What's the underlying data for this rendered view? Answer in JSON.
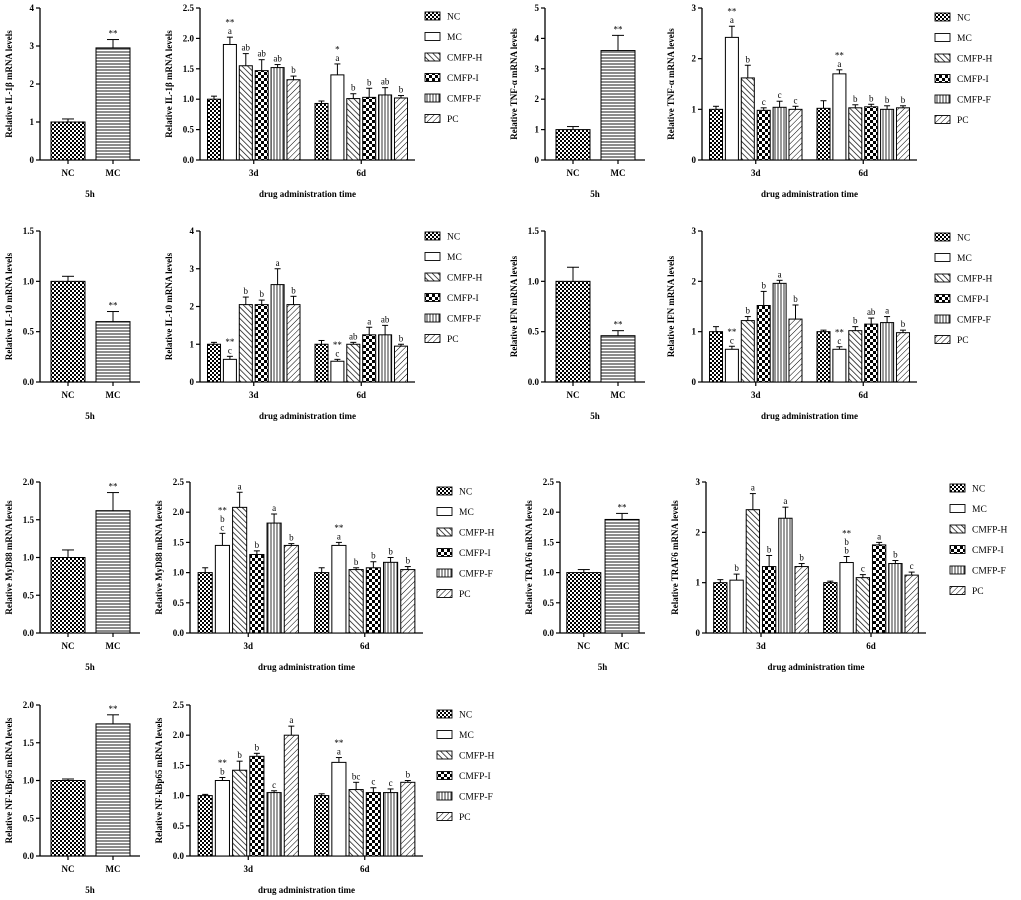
{
  "chart_data": [
    {
      "id": "il1b-5h",
      "type": "bar",
      "ylabel": "Relative IL-1β mRNA levels",
      "xlabel": "5h",
      "ylim": [
        0,
        4
      ],
      "yticks": [
        "0",
        "1",
        "2",
        "3",
        "4"
      ],
      "categories": [
        "NC",
        "MC"
      ],
      "values": [
        1.0,
        2.95
      ],
      "errors": [
        0.08,
        0.22
      ],
      "sig": [
        "",
        "**"
      ]
    },
    {
      "id": "il1b-time",
      "type": "bar",
      "ylabel": "Relative IL-1β mRNA levels",
      "xlabel": "drug administration time",
      "ylim": [
        0,
        2.5
      ],
      "yticks": [
        "0.0",
        "0.5",
        "1.0",
        "1.5",
        "2.0",
        "2.5"
      ],
      "groups": [
        "3d",
        "6d"
      ],
      "series": [
        {
          "name": "NC",
          "values": [
            1.0,
            0.93
          ],
          "errors": [
            0.05,
            0.04
          ],
          "labels": [
            "",
            ""
          ]
        },
        {
          "name": "MC",
          "values": [
            1.9,
            1.4
          ],
          "errors": [
            0.12,
            0.18
          ],
          "labels": [
            "**\na",
            "*\na"
          ]
        },
        {
          "name": "CMFP-H",
          "values": [
            1.55,
            1.01
          ],
          "errors": [
            0.2,
            0.08
          ],
          "labels": [
            "ab",
            "b"
          ]
        },
        {
          "name": "CMFP-I",
          "values": [
            1.47,
            1.03
          ],
          "errors": [
            0.18,
            0.15
          ],
          "labels": [
            "ab",
            "b"
          ]
        },
        {
          "name": "CMFP-F",
          "values": [
            1.52,
            1.07
          ],
          "errors": [
            0.05,
            0.12
          ],
          "labels": [
            "ab",
            "ab"
          ]
        },
        {
          "name": "PC",
          "values": [
            1.32,
            1.02
          ],
          "errors": [
            0.06,
            0.04
          ],
          "labels": [
            "b",
            "b"
          ]
        }
      ]
    },
    {
      "id": "tnf-5h",
      "type": "bar",
      "ylabel": "Relative TNF-α mRNA levels",
      "xlabel": "5h",
      "ylim": [
        0,
        5
      ],
      "yticks": [
        "0",
        "1",
        "2",
        "3",
        "4",
        "5"
      ],
      "categories": [
        "NC",
        "MC"
      ],
      "values": [
        1.0,
        3.6
      ],
      "errors": [
        0.1,
        0.5
      ],
      "sig": [
        "",
        "**"
      ]
    },
    {
      "id": "tnf-time",
      "type": "bar",
      "ylabel": "Relative TNF-α mRNA levels",
      "xlabel": "drug administration time",
      "ylim": [
        0,
        3
      ],
      "yticks": [
        "0",
        "1",
        "2",
        "3"
      ],
      "groups": [
        "3d",
        "6d"
      ],
      "series": [
        {
          "name": "NC",
          "values": [
            1.0,
            1.02
          ],
          "errors": [
            0.06,
            0.15
          ],
          "labels": [
            "",
            ""
          ]
        },
        {
          "name": "MC",
          "values": [
            2.42,
            1.7
          ],
          "errors": [
            0.22,
            0.08
          ],
          "labels": [
            "**\na",
            "**\na"
          ]
        },
        {
          "name": "CMFP-H",
          "values": [
            1.62,
            1.03
          ],
          "errors": [
            0.25,
            0.06
          ],
          "labels": [
            "b",
            "b"
          ]
        },
        {
          "name": "CMFP-I",
          "values": [
            0.98,
            1.05
          ],
          "errors": [
            0.05,
            0.05
          ],
          "labels": [
            "c",
            "b"
          ]
        },
        {
          "name": "CMFP-F",
          "values": [
            1.04,
            1.0
          ],
          "errors": [
            0.12,
            0.07
          ],
          "labels": [
            "c",
            "b"
          ]
        },
        {
          "name": "PC",
          "values": [
            1.0,
            1.03
          ],
          "errors": [
            0.06,
            0.04
          ],
          "labels": [
            "c",
            "b"
          ]
        }
      ]
    },
    {
      "id": "il10-5h",
      "type": "bar",
      "ylabel": "Relative IL-10 mRNA levels",
      "xlabel": "5h",
      "ylim": [
        0,
        1.5
      ],
      "yticks": [
        "0.0",
        "0.5",
        "1.0",
        "1.5"
      ],
      "categories": [
        "NC",
        "MC"
      ],
      "values": [
        1.0,
        0.6
      ],
      "errors": [
        0.05,
        0.1
      ],
      "sig": [
        "",
        "**"
      ]
    },
    {
      "id": "il10-time",
      "type": "bar",
      "ylabel": "Relative IL-10 mRNA levels",
      "xlabel": "drug administration time",
      "ylim": [
        0,
        4
      ],
      "yticks": [
        "0",
        "1",
        "2",
        "3",
        "4"
      ],
      "groups": [
        "3d",
        "6d"
      ],
      "series": [
        {
          "name": "NC",
          "values": [
            1.0,
            1.0
          ],
          "errors": [
            0.05,
            0.1
          ],
          "labels": [
            "",
            ""
          ]
        },
        {
          "name": "MC",
          "values": [
            0.6,
            0.55
          ],
          "errors": [
            0.08,
            0.05
          ],
          "labels": [
            "**\nc",
            "**\nc"
          ]
        },
        {
          "name": "CMFP-H",
          "values": [
            2.05,
            1.0
          ],
          "errors": [
            0.2,
            0.05
          ],
          "labels": [
            "b",
            "ab"
          ]
        },
        {
          "name": "CMFP-I",
          "values": [
            2.05,
            1.25
          ],
          "errors": [
            0.12,
            0.2
          ],
          "labels": [
            "b",
            "a"
          ]
        },
        {
          "name": "CMFP-F",
          "values": [
            2.58,
            1.25
          ],
          "errors": [
            0.42,
            0.25
          ],
          "labels": [
            "a",
            "ab"
          ]
        },
        {
          "name": "PC",
          "values": [
            2.05,
            0.95
          ],
          "errors": [
            0.22,
            0.05
          ],
          "labels": [
            "b",
            "b"
          ]
        }
      ]
    },
    {
      "id": "ifn-5h",
      "type": "bar",
      "ylabel": "Relative IFN mRNA levels",
      "xlabel": "5h",
      "ylim": [
        0,
        1.5
      ],
      "yticks": [
        "0.0",
        "0.5",
        "1.0",
        "1.5"
      ],
      "categories": [
        "NC",
        "MC"
      ],
      "values": [
        1.0,
        0.46
      ],
      "errors": [
        0.14,
        0.05
      ],
      "sig": [
        "",
        "**"
      ]
    },
    {
      "id": "ifn-time",
      "type": "bar",
      "ylabel": "Relative IFN mRNA levels",
      "xlabel": "drug administration time",
      "ylim": [
        0,
        3
      ],
      "yticks": [
        "0",
        "1",
        "2",
        "3"
      ],
      "groups": [
        "3d",
        "6d"
      ],
      "series": [
        {
          "name": "NC",
          "values": [
            1.0,
            1.0
          ],
          "errors": [
            0.1,
            0.03
          ],
          "labels": [
            "",
            ""
          ]
        },
        {
          "name": "MC",
          "values": [
            0.65,
            0.65
          ],
          "errors": [
            0.06,
            0.05
          ],
          "labels": [
            "**\nc",
            "**\nc"
          ]
        },
        {
          "name": "CMFP-H",
          "values": [
            1.22,
            1.02
          ],
          "errors": [
            0.08,
            0.08
          ],
          "labels": [
            "b",
            "b"
          ]
        },
        {
          "name": "CMFP-I",
          "values": [
            1.52,
            1.15
          ],
          "errors": [
            0.28,
            0.12
          ],
          "labels": [
            "b",
            "ab"
          ]
        },
        {
          "name": "CMFP-F",
          "values": [
            1.96,
            1.18
          ],
          "errors": [
            0.06,
            0.12
          ],
          "labels": [
            "a",
            "a"
          ]
        },
        {
          "name": "PC",
          "values": [
            1.25,
            0.98
          ],
          "errors": [
            0.28,
            0.05
          ],
          "labels": [
            "b",
            "b"
          ]
        }
      ]
    },
    {
      "id": "myd88-5h",
      "type": "bar",
      "ylabel": "Relative MyD88 mRNA levels",
      "xlabel": "5h",
      "ylim": [
        0,
        2
      ],
      "yticks": [
        "0.0",
        "0.5",
        "1.0",
        "1.5",
        "2.0"
      ],
      "categories": [
        "NC",
        "MC"
      ],
      "values": [
        1.0,
        1.62
      ],
      "errors": [
        0.1,
        0.24
      ],
      "sig": [
        "",
        "**"
      ]
    },
    {
      "id": "myd88-time",
      "type": "bar",
      "ylabel": "Relative MyD88 mRNA levels",
      "xlabel": "drug administration time",
      "ylim": [
        0,
        2.5
      ],
      "yticks": [
        "0.0",
        "0.5",
        "1.0",
        "1.5",
        "2.0",
        "2.5"
      ],
      "groups": [
        "3d",
        "6d"
      ],
      "series": [
        {
          "name": "NC",
          "values": [
            1.0,
            1.0
          ],
          "errors": [
            0.08,
            0.08
          ],
          "labels": [
            "",
            ""
          ]
        },
        {
          "name": "MC",
          "values": [
            1.45,
            1.45
          ],
          "errors": [
            0.2,
            0.05
          ],
          "labels": [
            "**\nb\nc",
            "**\na"
          ]
        },
        {
          "name": "CMFP-H",
          "values": [
            2.08,
            1.05
          ],
          "errors": [
            0.25,
            0.03
          ],
          "labels": [
            "a",
            "b"
          ]
        },
        {
          "name": "CMFP-I",
          "values": [
            1.3,
            1.08
          ],
          "errors": [
            0.06,
            0.1
          ],
          "labels": [
            "b",
            "b"
          ]
        },
        {
          "name": "CMFP-F",
          "values": [
            1.82,
            1.17
          ],
          "errors": [
            0.15,
            0.08
          ],
          "labels": [
            "a",
            "b"
          ]
        },
        {
          "name": "PC",
          "values": [
            1.45,
            1.05
          ],
          "errors": [
            0.03,
            0.05
          ],
          "labels": [
            "b",
            "b"
          ]
        }
      ]
    },
    {
      "id": "traf6-5h",
      "type": "bar",
      "ylabel": "Relative TRAF6 mRNA levels",
      "xlabel": "5h",
      "ylim": [
        0,
        2.5
      ],
      "yticks": [
        "0.0",
        "0.5",
        "1.0",
        "1.5",
        "2.0",
        "2.5"
      ],
      "categories": [
        "NC",
        "MC"
      ],
      "values": [
        1.0,
        1.88
      ],
      "errors": [
        0.05,
        0.1
      ],
      "sig": [
        "",
        "**"
      ]
    },
    {
      "id": "traf6-time",
      "type": "bar",
      "ylabel": "Relative TRAF6 mRNA levels",
      "xlabel": "drug administration time",
      "ylim": [
        0,
        3
      ],
      "yticks": [
        "0",
        "1",
        "2",
        "3"
      ],
      "groups": [
        "3d",
        "6d"
      ],
      "series": [
        {
          "name": "NC",
          "values": [
            1.0,
            1.0
          ],
          "errors": [
            0.06,
            0.03
          ],
          "labels": [
            "",
            ""
          ]
        },
        {
          "name": "MC",
          "values": [
            1.05,
            1.4
          ],
          "errors": [
            0.12,
            0.12
          ],
          "labels": [
            "b",
            "**\nb\nb"
          ]
        },
        {
          "name": "CMFP-H",
          "values": [
            2.45,
            1.1
          ],
          "errors": [
            0.32,
            0.06
          ],
          "labels": [
            "a",
            "c"
          ]
        },
        {
          "name": "CMFP-I",
          "values": [
            1.32,
            1.75
          ],
          "errors": [
            0.22,
            0.05
          ],
          "labels": [
            "b",
            "a"
          ]
        },
        {
          "name": "CMFP-F",
          "values": [
            2.28,
            1.38
          ],
          "errors": [
            0.22,
            0.06
          ],
          "labels": [
            "a",
            "b"
          ]
        },
        {
          "name": "PC",
          "values": [
            1.32,
            1.15
          ],
          "errors": [
            0.06,
            0.06
          ],
          "labels": [
            "b",
            "c"
          ]
        }
      ]
    },
    {
      "id": "nfkb-5h",
      "type": "bar",
      "ylabel": "Relative NF-kBp65 mRNA levels",
      "xlabel": "5h",
      "ylim": [
        0,
        2
      ],
      "yticks": [
        "0.0",
        "0.5",
        "1.0",
        "1.5",
        "2.0"
      ],
      "categories": [
        "NC",
        "MC"
      ],
      "values": [
        1.0,
        1.75
      ],
      "errors": [
        0.02,
        0.12
      ],
      "sig": [
        "",
        "**"
      ]
    },
    {
      "id": "nfkb-time",
      "type": "bar",
      "ylabel": "Relative NF-kBp65 mRNA levels",
      "xlabel": "drug administration time",
      "ylim": [
        0,
        2.5
      ],
      "yticks": [
        "0.0",
        "0.5",
        "1.0",
        "1.5",
        "2.0",
        "2.5"
      ],
      "groups": [
        "3d",
        "6d"
      ],
      "series": [
        {
          "name": "NC",
          "values": [
            1.0,
            1.0
          ],
          "errors": [
            0.02,
            0.03
          ],
          "labels": [
            "",
            ""
          ]
        },
        {
          "name": "MC",
          "values": [
            1.25,
            1.55
          ],
          "errors": [
            0.05,
            0.08
          ],
          "labels": [
            "**\nb",
            "**\na"
          ]
        },
        {
          "name": "CMFP-H",
          "values": [
            1.42,
            1.1
          ],
          "errors": [
            0.15,
            0.12
          ],
          "labels": [
            "b",
            "bc"
          ]
        },
        {
          "name": "CMFP-I",
          "values": [
            1.65,
            1.05
          ],
          "errors": [
            0.05,
            0.08
          ],
          "labels": [
            "b",
            "c"
          ]
        },
        {
          "name": "CMFP-F",
          "values": [
            1.05,
            1.05
          ],
          "errors": [
            0.03,
            0.06
          ],
          "labels": [
            "c",
            "c"
          ]
        },
        {
          "name": "PC",
          "values": [
            2.0,
            1.22
          ],
          "errors": [
            0.15,
            0.03
          ],
          "labels": [
            "a",
            "b"
          ]
        }
      ]
    }
  ],
  "legend": [
    "NC",
    "MC",
    "CMFP-H",
    "CMFP-I",
    "CMFP-F",
    "PC"
  ]
}
